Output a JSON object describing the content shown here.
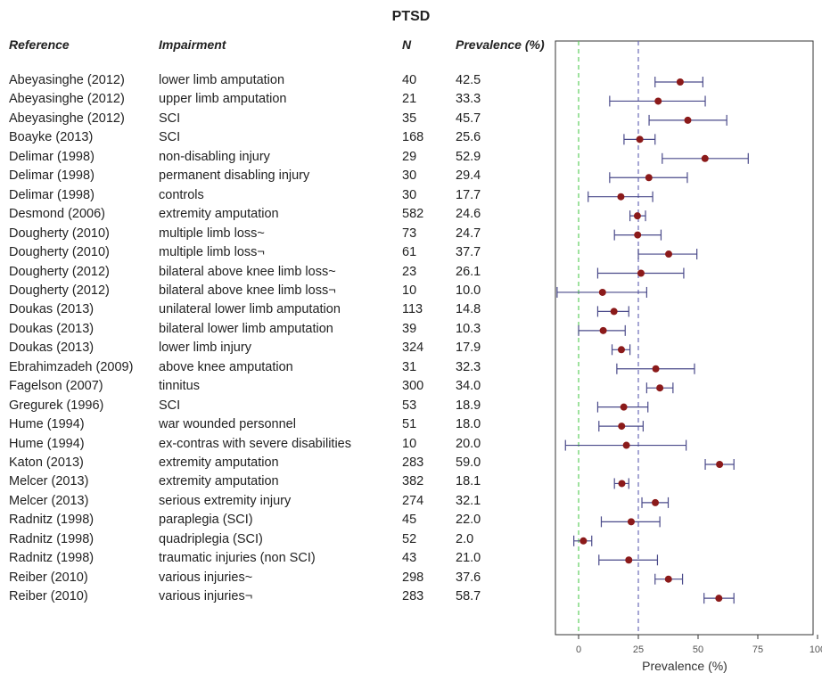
{
  "title": "PTSD",
  "headers": {
    "reference": "Reference",
    "impairment": "Impairment",
    "n": "N",
    "prevalence": "Prevalence (%)"
  },
  "rows": [
    {
      "reference": "Abeyasinghe (2012)",
      "impairment": "lower limb amputation",
      "n": "40",
      "prevalence": "42.5"
    },
    {
      "reference": "Abeyasinghe (2012)",
      "impairment": "upper limb amputation",
      "n": "21",
      "prevalence": "33.3"
    },
    {
      "reference": "Abeyasinghe (2012)",
      "impairment": "SCI",
      "n": "35",
      "prevalence": "45.7"
    },
    {
      "reference": "Boayke (2013)",
      "impairment": "SCI",
      "n": "168",
      "prevalence": "25.6"
    },
    {
      "reference": "Delimar (1998)",
      "impairment": "non-disabling injury",
      "n": "29",
      "prevalence": "52.9"
    },
    {
      "reference": "Delimar (1998)",
      "impairment": "permanent disabling injury",
      "n": "30",
      "prevalence": "29.4"
    },
    {
      "reference": "Delimar (1998)",
      "impairment": "controls",
      "n": "30",
      "prevalence": "17.7"
    },
    {
      "reference": "Desmond (2006)",
      "impairment": "extremity amputation",
      "n": "582",
      "prevalence": "24.6"
    },
    {
      "reference": "Dougherty (2010)",
      "impairment": "multiple limb loss~",
      "n": "73",
      "prevalence": "24.7"
    },
    {
      "reference": "Dougherty (2010)",
      "impairment": "multiple limb loss¬",
      "n": "61",
      "prevalence": "37.7"
    },
    {
      "reference": "Dougherty (2012)",
      "impairment": "bilateral above knee limb loss~",
      "n": "23",
      "prevalence": "26.1"
    },
    {
      "reference": "Dougherty (2012)",
      "impairment": "bilateral above knee limb loss¬",
      "n": "10",
      "prevalence": "10.0"
    },
    {
      "reference": "Doukas (2013)",
      "impairment": "unilateral lower limb amputation",
      "n": "113",
      "prevalence": "14.8"
    },
    {
      "reference": "Doukas (2013)",
      "impairment": "bilateral lower limb amputation",
      "n": "39",
      "prevalence": "10.3"
    },
    {
      "reference": "Doukas (2013)",
      "impairment": "lower limb injury",
      "n": "324",
      "prevalence": "17.9"
    },
    {
      "reference": "Ebrahimzadeh (2009)",
      "impairment": "above knee amputation",
      "n": "31",
      "prevalence": "32.3"
    },
    {
      "reference": "Fagelson (2007)",
      "impairment": "tinnitus",
      "n": "300",
      "prevalence": "34.0"
    },
    {
      "reference": "Gregurek (1996)",
      "impairment": "SCI",
      "n": "53",
      "prevalence": "18.9"
    },
    {
      "reference": "Hume (1994)",
      "impairment": "war wounded personnel",
      "n": "51",
      "prevalence": "18.0"
    },
    {
      "reference": "Hume (1994)",
      "impairment": "ex-contras with severe disabilities",
      "n": "10",
      "prevalence": "20.0"
    },
    {
      "reference": "Katon (2013)",
      "impairment": "extremity amputation",
      "n": "283",
      "prevalence": "59.0"
    },
    {
      "reference": "Melcer (2013)",
      "impairment": "extremity amputation",
      "n": "382",
      "prevalence": "18.1"
    },
    {
      "reference": "Melcer (2013)",
      "impairment": "serious extremity injury",
      "n": "274",
      "prevalence": "32.1"
    },
    {
      "reference": "Radnitz (1998)",
      "impairment": "paraplegia (SCI)",
      "n": "45",
      "prevalence": "22.0"
    },
    {
      "reference": "Radnitz (1998)",
      "impairment": "quadriplegia (SCI)",
      "n": "52",
      "prevalence": "2.0"
    },
    {
      "reference": "Radnitz (1998)",
      "impairment": "traumatic injuries (non SCI)",
      "n": "43",
      "prevalence": "21.0"
    },
    {
      "reference": "Reiber (2010)",
      "impairment": "various injuries~",
      "n": "298",
      "prevalence": "37.6"
    },
    {
      "reference": "Reiber (2010)",
      "impairment": "various injuries¬",
      "n": "283",
      "prevalence": "58.7"
    }
  ],
  "chart_data": {
    "type": "forest",
    "title": "PTSD",
    "xlabel": "Prevalence (%)",
    "xlim": [
      -10,
      100
    ],
    "xticks": [
      0,
      25,
      50,
      75,
      100
    ],
    "reference_lines": [
      {
        "value": 0,
        "style": "dashed",
        "color": "#5fcf5f"
      },
      {
        "value": 25,
        "style": "dashed",
        "color": "#6a6ab8"
      }
    ],
    "point_color": "#8b1a1a",
    "ci_color": "#4a4a8a",
    "estimates": [
      42.5,
      33.3,
      45.7,
      25.6,
      52.9,
      29.4,
      17.7,
      24.6,
      24.7,
      37.7,
      26.1,
      10.0,
      14.8,
      10.3,
      17.9,
      32.3,
      34.0,
      18.9,
      18.0,
      20.0,
      59.0,
      18.1,
      32.1,
      22.0,
      2.0,
      21.0,
      37.6,
      58.7
    ],
    "ci_lower": [
      32,
      13,
      29.5,
      19,
      35,
      13,
      4,
      21.5,
      15,
      25,
      8,
      -9,
      8,
      0,
      14,
      16,
      28.5,
      8,
      8.5,
      -5.5,
      53,
      15,
      26.5,
      9.5,
      -2,
      8.5,
      32,
      52.5
    ],
    "ci_upper": [
      52,
      53,
      62,
      32,
      71,
      45.5,
      31,
      28,
      34.5,
      49.5,
      44,
      28.5,
      21,
      19.5,
      21.5,
      48.5,
      39.5,
      29,
      27,
      45,
      65,
      21,
      37.5,
      34,
      5.5,
      33,
      43.5,
      65
    ]
  }
}
